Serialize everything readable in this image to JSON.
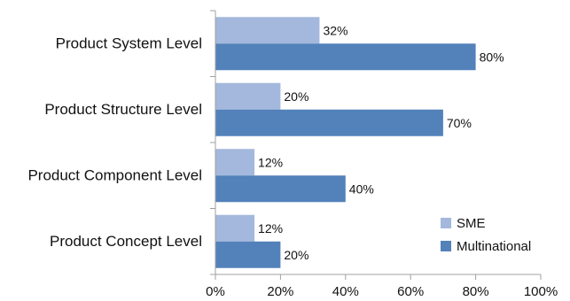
{
  "chart_data": {
    "type": "bar",
    "orientation": "horizontal",
    "title": "",
    "xlabel": "",
    "ylabel": "",
    "categories": [
      "Product System Level",
      "Product Structure Level",
      "Product Component Level",
      "Product Concept Level"
    ],
    "series": [
      {
        "name": "SME",
        "values": [
          32,
          20,
          12,
          12
        ],
        "labels": [
          "32%",
          "20%",
          "12%",
          "12%"
        ],
        "color": "#a3b8dc"
      },
      {
        "name": "Multinational",
        "values": [
          80,
          70,
          40,
          20
        ],
        "labels": [
          "80%",
          "70%",
          "40%",
          "20%"
        ],
        "color": "#5381ba"
      }
    ],
    "xlim": [
      0,
      100
    ],
    "x_ticks": [
      "0%",
      "20%",
      "40%",
      "60%",
      "80%",
      "100%"
    ],
    "grid": false,
    "legend_position": "bottom-right"
  }
}
